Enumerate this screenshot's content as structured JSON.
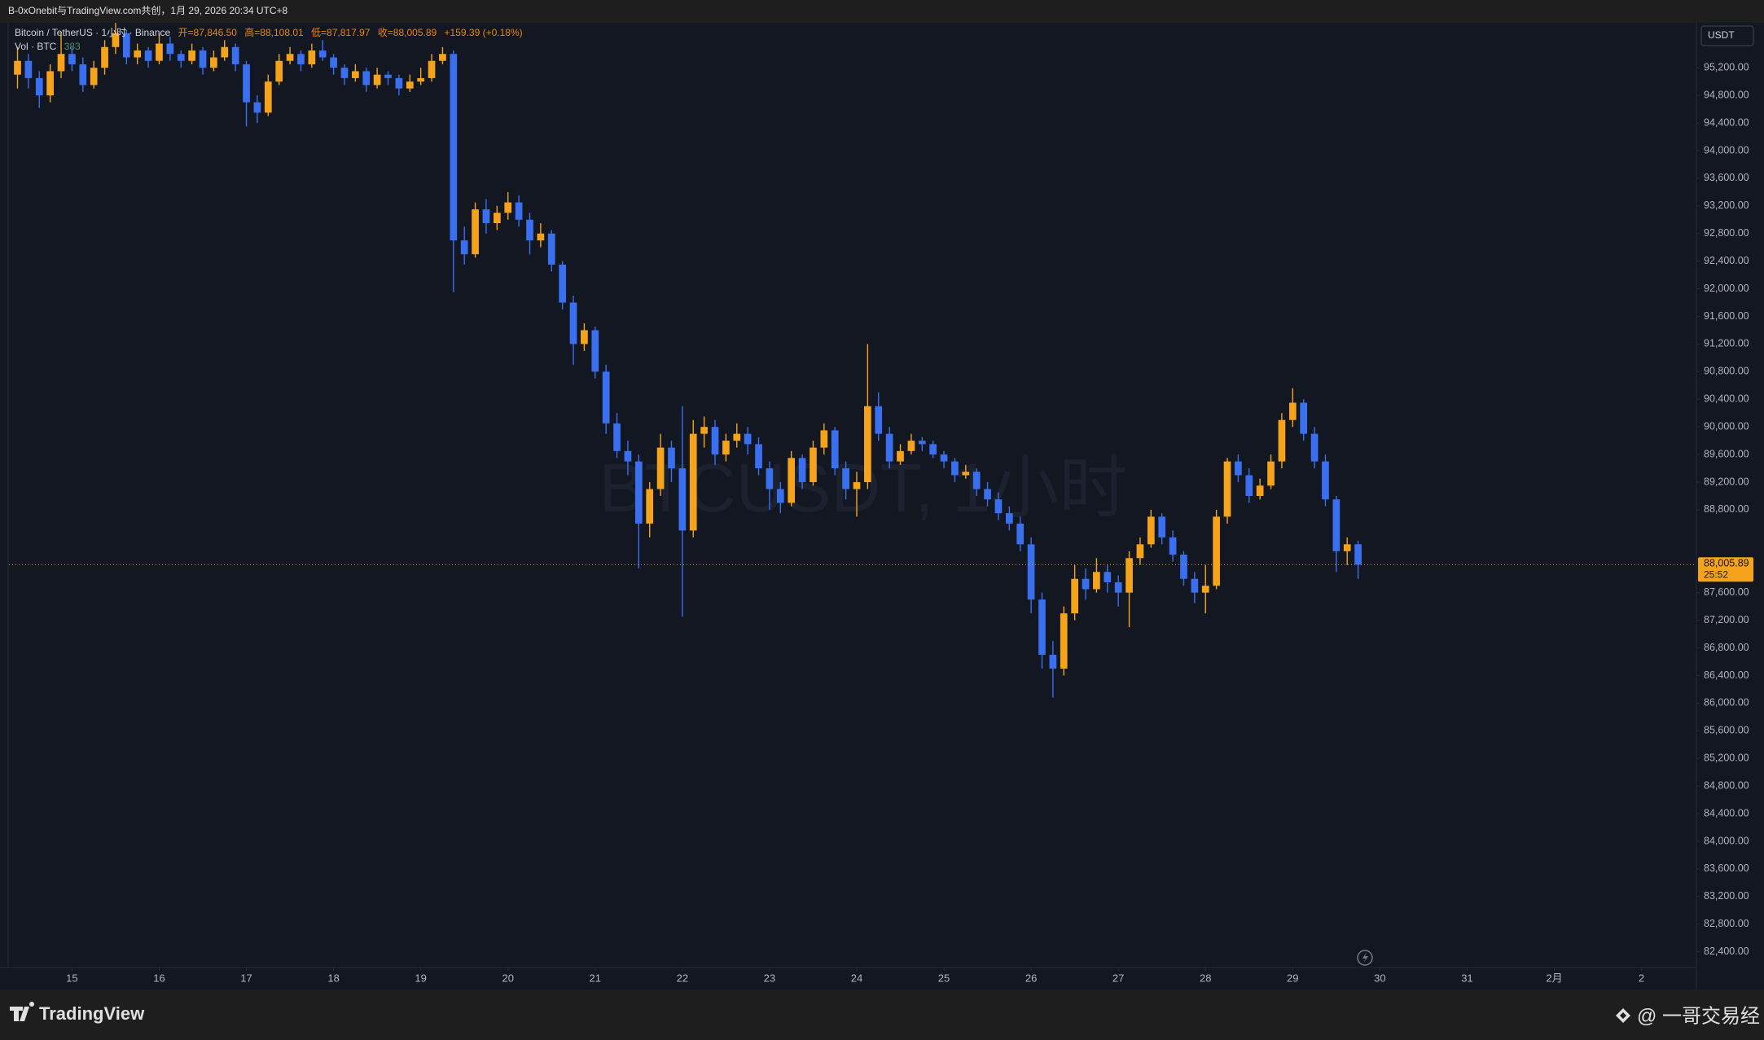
{
  "top_bar": {
    "text": "B-0xOnebit与TradingView.com共创，1月 29, 2026 20:34 UTC+8"
  },
  "chart_data": {
    "type": "candlestick",
    "header": {
      "symbol": "Bitcoin / TetherUS · 1小时 · Binance",
      "open": "开=87,846.50",
      "high": "高=88,108.01",
      "low": "低=87,817.97",
      "close": "收=88,005.89",
      "change": "+159.39 (+0.18%)"
    },
    "volume": {
      "label": "Vol · BTC",
      "value": "383"
    },
    "watermark": "BTCUSDT, 1小时",
    "currency": "USDT",
    "up_color": "#f5a31a",
    "down_color": "#3a6ff0",
    "last_price": {
      "value": 88005.89,
      "label": "88,005.89"
    },
    "countdown": "25:52",
    "xlim": [
      14.277,
      33.63
    ],
    "xticks": [
      15,
      16,
      17,
      18,
      19,
      20,
      21,
      22,
      23,
      24,
      25,
      26,
      27,
      28,
      29,
      30,
      31,
      {
        "value": 32,
        "label": "2月"
      },
      {
        "value": 33,
        "label": "2"
      }
    ],
    "ylim": [
      82172,
      95851
    ],
    "yticks": [
      {
        "value": 82400,
        "label": "82,400.00"
      },
      {
        "value": 82800,
        "label": "82,800.00"
      },
      {
        "value": 83200,
        "label": "83,200.00"
      },
      {
        "value": 83600,
        "label": "83,600.00"
      },
      {
        "value": 84000,
        "label": "84,000.00"
      },
      {
        "value": 84400,
        "label": "84,400.00"
      },
      {
        "value": 84800,
        "label": "84,800.00"
      },
      {
        "value": 85200,
        "label": "85,200.00"
      },
      {
        "value": 85600,
        "label": "85,600.00"
      },
      {
        "value": 86000,
        "label": "86,000.00"
      },
      {
        "value": 86400,
        "label": "86,400.00"
      },
      {
        "value": 86800,
        "label": "86,800.00"
      },
      {
        "value": 87200,
        "label": "87,200.00"
      },
      {
        "value": 87600,
        "label": "87,600.00"
      },
      {
        "value": 88800,
        "label": "88,800.00"
      },
      {
        "value": 89200,
        "label": "89,200.00"
      },
      {
        "value": 89600,
        "label": "89,600.00"
      },
      {
        "value": 90000,
        "label": "90,000.00"
      },
      {
        "value": 90400,
        "label": "90,400.00"
      },
      {
        "value": 90800,
        "label": "90,800.00"
      },
      {
        "value": 91200,
        "label": "91,200.00"
      },
      {
        "value": 91600,
        "label": "91,600.00"
      },
      {
        "value": 92000,
        "label": "92,000.00"
      },
      {
        "value": 92400,
        "label": "92,400.00"
      },
      {
        "value": 92800,
        "label": "92,800.00"
      },
      {
        "value": 93200,
        "label": "93,200.00"
      },
      {
        "value": 93600,
        "label": "93,600.00"
      },
      {
        "value": 94000,
        "label": "94,000.00"
      },
      {
        "value": 94400,
        "label": "94,400.00"
      },
      {
        "value": 94800,
        "label": "94,800.00"
      },
      {
        "value": 95200,
        "label": "95,200.00"
      }
    ],
    "candles": [
      [
        14.375,
        95100,
        95500,
        94900,
        95300
      ],
      [
        14.5,
        95300,
        95400,
        94900,
        95050
      ],
      [
        14.625,
        95050,
        95150,
        94620,
        94800
      ],
      [
        14.75,
        94800,
        95250,
        94700,
        95150
      ],
      [
        14.875,
        95150,
        95700,
        95050,
        95400
      ],
      [
        15,
        95400,
        95500,
        95150,
        95250
      ],
      [
        15.125,
        95250,
        95350,
        94850,
        94950
      ],
      [
        15.25,
        94950,
        95300,
        94900,
        95200
      ],
      [
        15.375,
        95200,
        95600,
        95100,
        95500
      ],
      [
        15.5,
        95500,
        95850,
        95400,
        95700
      ],
      [
        15.625,
        95700,
        95750,
        95250,
        95350
      ],
      [
        15.75,
        95350,
        95550,
        95250,
        95450
      ],
      [
        15.875,
        95450,
        95500,
        95200,
        95300
      ],
      [
        16,
        95300,
        95700,
        95250,
        95550
      ],
      [
        16.125,
        95550,
        95650,
        95300,
        95400
      ],
      [
        16.25,
        95400,
        95450,
        95200,
        95300
      ],
      [
        16.375,
        95300,
        95550,
        95250,
        95450
      ],
      [
        16.5,
        95450,
        95500,
        95100,
        95200
      ],
      [
        16.625,
        95200,
        95450,
        95150,
        95350
      ],
      [
        16.75,
        95350,
        95600,
        95300,
        95500
      ],
      [
        16.875,
        95500,
        95550,
        95150,
        95250
      ],
      [
        17,
        95250,
        95300,
        94350,
        94700
      ],
      [
        17.125,
        94700,
        94800,
        94400,
        94550
      ],
      [
        17.25,
        94550,
        95100,
        94500,
        95000
      ],
      [
        17.375,
        95000,
        95400,
        94950,
        95300
      ],
      [
        17.5,
        95300,
        95500,
        95250,
        95400
      ],
      [
        17.625,
        95400,
        95450,
        95150,
        95250
      ],
      [
        17.75,
        95250,
        95550,
        95200,
        95450
      ],
      [
        17.875,
        95450,
        95600,
        95300,
        95350
      ],
      [
        18,
        95350,
        95400,
        95100,
        95200
      ],
      [
        18.125,
        95200,
        95250,
        94950,
        95050
      ],
      [
        18.25,
        95050,
        95250,
        95000,
        95150
      ],
      [
        18.375,
        95150,
        95200,
        94850,
        94950
      ],
      [
        18.5,
        94950,
        95200,
        94900,
        95100
      ],
      [
        18.625,
        95100,
        95150,
        94950,
        95050
      ],
      [
        18.75,
        95050,
        95100,
        94800,
        94900
      ],
      [
        18.875,
        94900,
        95100,
        94850,
        95000
      ],
      [
        19,
        95000,
        95200,
        94950,
        95050
      ],
      [
        19.125,
        95050,
        95400,
        95000,
        95300
      ],
      [
        19.25,
        95300,
        95500,
        95250,
        95400
      ],
      [
        19.375,
        95400,
        95450,
        91950,
        92700
      ],
      [
        19.5,
        92700,
        92900,
        92350,
        92500
      ],
      [
        19.625,
        92500,
        93250,
        92450,
        93150
      ],
      [
        19.75,
        93150,
        93300,
        92800,
        92950
      ],
      [
        19.875,
        92950,
        93200,
        92850,
        93100
      ],
      [
        20,
        93100,
        93400,
        93000,
        93250
      ],
      [
        20.125,
        93250,
        93350,
        92900,
        93000
      ],
      [
        20.25,
        93000,
        93100,
        92500,
        92700
      ],
      [
        20.375,
        92700,
        92950,
        92600,
        92800
      ],
      [
        20.5,
        92800,
        92850,
        92250,
        92350
      ],
      [
        20.625,
        92350,
        92400,
        91700,
        91800
      ],
      [
        20.75,
        91800,
        91900,
        90900,
        91200
      ],
      [
        20.875,
        91200,
        91500,
        91100,
        91400
      ],
      [
        21,
        91400,
        91450,
        90700,
        90800
      ],
      [
        21.125,
        90800,
        90900,
        89900,
        90050
      ],
      [
        21.25,
        90050,
        90200,
        89550,
        89650
      ],
      [
        21.375,
        89650,
        89800,
        89300,
        89500
      ],
      [
        21.5,
        89500,
        89600,
        87950,
        88600
      ],
      [
        21.625,
        88600,
        89200,
        88400,
        89100
      ],
      [
        21.75,
        89100,
        89900,
        89000,
        89700
      ],
      [
        21.875,
        89700,
        89800,
        89200,
        89400
      ],
      [
        22,
        89400,
        90300,
        87250,
        88500
      ],
      [
        22.125,
        88500,
        90100,
        88400,
        89900
      ],
      [
        22.25,
        89900,
        90150,
        89700,
        90000
      ],
      [
        22.375,
        90000,
        90100,
        89450,
        89600
      ],
      [
        22.5,
        89600,
        89900,
        89500,
        89800
      ],
      [
        22.625,
        89800,
        90050,
        89700,
        89900
      ],
      [
        22.75,
        89900,
        90000,
        89600,
        89750
      ],
      [
        22.875,
        89750,
        89850,
        89300,
        89400
      ],
      [
        23,
        89400,
        89500,
        88800,
        89100
      ],
      [
        23.125,
        89100,
        89200,
        88750,
        88900
      ],
      [
        23.25,
        88900,
        89650,
        88850,
        89550
      ],
      [
        23.375,
        89550,
        89600,
        89100,
        89200
      ],
      [
        23.5,
        89200,
        89800,
        89150,
        89700
      ],
      [
        23.625,
        89700,
        90050,
        89600,
        89950
      ],
      [
        23.75,
        89950,
        90000,
        89300,
        89400
      ],
      [
        23.875,
        89400,
        89500,
        88950,
        89100
      ],
      [
        24,
        89100,
        89350,
        88700,
        89200
      ],
      [
        24.125,
        89200,
        91200,
        89100,
        90300
      ],
      [
        24.25,
        90300,
        90500,
        89800,
        89900
      ],
      [
        24.375,
        89900,
        90000,
        89400,
        89500
      ],
      [
        24.5,
        89500,
        89750,
        89450,
        89650
      ],
      [
        24.625,
        89650,
        89900,
        89600,
        89800
      ],
      [
        24.75,
        89800,
        89850,
        89650,
        89750
      ],
      [
        24.875,
        89750,
        89800,
        89550,
        89600
      ],
      [
        25,
        89600,
        89650,
        89400,
        89500
      ],
      [
        25.125,
        89500,
        89550,
        89200,
        89300
      ],
      [
        25.25,
        89300,
        89450,
        89250,
        89350
      ],
      [
        25.375,
        89350,
        89400,
        89000,
        89100
      ],
      [
        25.5,
        89100,
        89200,
        88850,
        88950
      ],
      [
        25.625,
        88950,
        89050,
        88650,
        88750
      ],
      [
        25.75,
        88750,
        88850,
        88500,
        88600
      ],
      [
        25.875,
        88600,
        88700,
        88200,
        88300
      ],
      [
        26,
        88300,
        88400,
        87300,
        87500
      ],
      [
        26.125,
        87500,
        87600,
        86500,
        86700
      ],
      [
        26.25,
        86700,
        86900,
        86080,
        86500
      ],
      [
        26.375,
        86500,
        87400,
        86400,
        87300
      ],
      [
        26.5,
        87300,
        88000,
        87200,
        87800
      ],
      [
        26.625,
        87800,
        87950,
        87500,
        87650
      ],
      [
        26.75,
        87650,
        88100,
        87600,
        87900
      ],
      [
        26.875,
        87900,
        88000,
        87600,
        87750
      ],
      [
        27,
        87750,
        87850,
        87400,
        87600
      ],
      [
        27.125,
        87600,
        88200,
        87100,
        88100
      ],
      [
        27.25,
        88100,
        88400,
        88000,
        88300
      ],
      [
        27.375,
        88300,
        88800,
        88250,
        88700
      ],
      [
        27.5,
        88700,
        88750,
        88300,
        88400
      ],
      [
        27.625,
        88400,
        88500,
        88050,
        88150
      ],
      [
        27.75,
        88150,
        88200,
        87700,
        87800
      ],
      [
        27.875,
        87800,
        87900,
        87450,
        87600
      ],
      [
        28,
        87600,
        88000,
        87300,
        87700
      ],
      [
        28.125,
        87700,
        88800,
        87650,
        88700
      ],
      [
        28.25,
        88700,
        89550,
        88600,
        89500
      ],
      [
        28.375,
        89500,
        89600,
        89200,
        89300
      ],
      [
        28.5,
        89300,
        89400,
        88900,
        89000
      ],
      [
        28.625,
        89000,
        89250,
        88950,
        89150
      ],
      [
        28.75,
        89150,
        89600,
        89100,
        89500
      ],
      [
        28.875,
        89500,
        90200,
        89400,
        90100
      ],
      [
        29,
        90100,
        90560,
        90000,
        90350
      ],
      [
        29.125,
        90350,
        90400,
        89800,
        89900
      ],
      [
        29.25,
        89900,
        90000,
        89400,
        89500
      ],
      [
        29.375,
        89500,
        89600,
        88850,
        88950
      ],
      [
        29.5,
        88950,
        89000,
        87900,
        88200
      ],
      [
        29.625,
        88200,
        88400,
        88000,
        88300
      ],
      [
        29.75,
        88300,
        88350,
        87800,
        88005.89
      ]
    ]
  },
  "footer": {
    "brand": "TradingView",
    "credit": "@ 一哥交易经"
  }
}
